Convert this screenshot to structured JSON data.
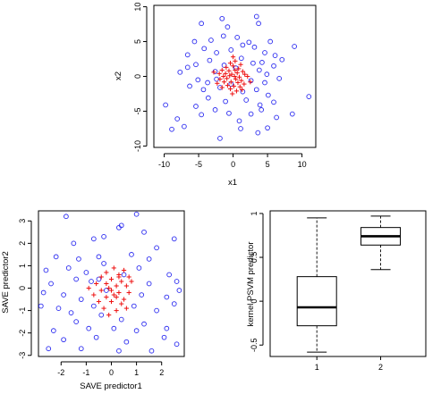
{
  "chart_data": [
    {
      "type": "scatter",
      "xlabel": "x1",
      "ylabel": "x2",
      "xlim": [
        -11.5,
        12
      ],
      "ylim": [
        -10.2,
        10.2
      ],
      "xticks": [
        -10,
        -5,
        0,
        5,
        10
      ],
      "yticks": [
        -10,
        -5,
        0,
        5,
        10
      ],
      "series": [
        {
          "marker": "circle",
          "color": "#2b2bf0",
          "points": [
            [
              -4.6,
              7.6
            ],
            [
              -1.6,
              8.3
            ],
            [
              -0.8,
              7.1
            ],
            [
              3.4,
              8.6
            ],
            [
              3.7,
              7.6
            ],
            [
              -5.6,
              5.0
            ],
            [
              -3.2,
              5.2
            ],
            [
              -1.4,
              5.8
            ],
            [
              0.6,
              5.6
            ],
            [
              2.3,
              4.9
            ],
            [
              3.1,
              4.2
            ],
            [
              5.4,
              5.0
            ],
            [
              8.9,
              4.3
            ],
            [
              -6.6,
              3.1
            ],
            [
              -4.2,
              4.0
            ],
            [
              -2.4,
              3.4
            ],
            [
              -0.3,
              3.8
            ],
            [
              1.4,
              4.5
            ],
            [
              4.6,
              3.4
            ],
            [
              6.1,
              3.0
            ],
            [
              7.1,
              2.4
            ],
            [
              -5.4,
              1.7
            ],
            [
              -3.4,
              2.3
            ],
            [
              -1.3,
              1.6
            ],
            [
              1.2,
              2.6
            ],
            [
              2.9,
              1.9
            ],
            [
              4.2,
              2.0
            ],
            [
              5.9,
              1.5
            ],
            [
              -7.7,
              0.6
            ],
            [
              -6.6,
              1.3
            ],
            [
              -2.6,
              0.7
            ],
            [
              3.8,
              0.9
            ],
            [
              4.9,
              0.3
            ],
            [
              -5.1,
              -0.5
            ],
            [
              -3.7,
              -0.9
            ],
            [
              -2.4,
              -0.4
            ],
            [
              2.6,
              -0.6
            ],
            [
              4.6,
              -0.9
            ],
            [
              6.7,
              -0.3
            ],
            [
              -6.3,
              -1.4
            ],
            [
              -4.3,
              -1.9
            ],
            [
              -1.9,
              -1.6
            ],
            [
              1.4,
              -2.2
            ],
            [
              3.4,
              -1.9
            ],
            [
              5.1,
              -2.7
            ],
            [
              -3.6,
              -3.1
            ],
            [
              -1.1,
              -3.6
            ],
            [
              1.9,
              -3.4
            ],
            [
              3.9,
              -4.1
            ],
            [
              5.9,
              -3.7
            ],
            [
              -5.4,
              -4.3
            ],
            [
              -4.6,
              -5.5
            ],
            [
              -2.6,
              -4.8
            ],
            [
              -0.6,
              -5.3
            ],
            [
              0.9,
              -6.4
            ],
            [
              2.6,
              -5.4
            ],
            [
              4.1,
              -4.8
            ],
            [
              6.3,
              -5.9
            ],
            [
              -9.8,
              -4.1
            ],
            [
              -8.1,
              -6.1
            ],
            [
              -8.9,
              -7.6
            ],
            [
              -7.1,
              -7.2
            ],
            [
              -1.9,
              -8.9
            ],
            [
              1.1,
              -7.5
            ],
            [
              3.6,
              -8.1
            ],
            [
              5.0,
              -7.4
            ],
            [
              8.6,
              -5.4
            ],
            [
              11.0,
              -2.9
            ],
            [
              -0.3,
              -1.1
            ],
            [
              0.4,
              1.2
            ]
          ]
        },
        {
          "marker": "plus",
          "color": "#ee1111",
          "points": [
            [
              0.3,
              2.2
            ],
            [
              -0.4,
              1.9
            ],
            [
              1.1,
              1.7
            ],
            [
              -1.0,
              1.3
            ],
            [
              0.0,
              1.5
            ],
            [
              0.8,
              1.1
            ],
            [
              -1.6,
              0.9
            ],
            [
              -0.6,
              0.8
            ],
            [
              0.3,
              0.9
            ],
            [
              1.4,
              0.7
            ],
            [
              -2.0,
              0.4
            ],
            [
              -1.1,
              0.4
            ],
            [
              -0.2,
              0.3
            ],
            [
              0.6,
              0.5
            ],
            [
              1.7,
              0.3
            ],
            [
              -1.4,
              0.0
            ],
            [
              -0.5,
              0.1
            ],
            [
              0.2,
              0.0
            ],
            [
              0.9,
              -0.1
            ],
            [
              2.1,
              0.0
            ],
            [
              -1.9,
              -0.4
            ],
            [
              -0.9,
              -0.3
            ],
            [
              0.4,
              -0.4
            ],
            [
              1.2,
              -0.6
            ],
            [
              -1.3,
              -0.8
            ],
            [
              -0.3,
              -0.8
            ],
            [
              0.7,
              -0.9
            ],
            [
              1.6,
              -1.1
            ],
            [
              -0.8,
              -1.3
            ],
            [
              0.1,
              -1.4
            ],
            [
              1.0,
              -1.5
            ],
            [
              -1.6,
              -1.6
            ],
            [
              -0.4,
              -1.8
            ],
            [
              0.5,
              -2.1
            ],
            [
              1.3,
              -1.9
            ],
            [
              -0.1,
              -2.5
            ],
            [
              -2.3,
              -1.0
            ],
            [
              2.5,
              -0.8
            ],
            [
              0.0,
              2.8
            ],
            [
              -2.8,
              0.6
            ]
          ]
        }
      ]
    },
    {
      "type": "scatter",
      "xlabel": "SAVE predictor1",
      "ylabel": "SAVE predictor2",
      "xlim": [
        -2.9,
        2.9
      ],
      "ylim": [
        -3.05,
        3.45
      ],
      "xticks": [
        -2,
        -1,
        0,
        1,
        2
      ],
      "yticks": [
        -3,
        -2,
        -1,
        0,
        1,
        2,
        3
      ],
      "series": [
        {
          "marker": "circle",
          "color": "#2b2bf0",
          "points": [
            [
              -1.8,
              3.2
            ],
            [
              1.0,
              3.3
            ],
            [
              -0.3,
              2.3
            ],
            [
              0.3,
              2.7
            ],
            [
              0.4,
              2.8
            ],
            [
              1.3,
              2.5
            ],
            [
              2.5,
              2.2
            ],
            [
              -1.5,
              2.0
            ],
            [
              -0.7,
              2.2
            ],
            [
              1.8,
              1.8
            ],
            [
              -2.2,
              1.4
            ],
            [
              -1.3,
              1.3
            ],
            [
              -0.5,
              1.4
            ],
            [
              0.8,
              1.5
            ],
            [
              1.5,
              1.3
            ],
            [
              -2.6,
              0.8
            ],
            [
              -1.7,
              0.9
            ],
            [
              -1.0,
              0.7
            ],
            [
              -0.3,
              1.1
            ],
            [
              1.1,
              0.9
            ],
            [
              2.3,
              0.6
            ],
            [
              -2.4,
              0.2
            ],
            [
              -1.4,
              0.4
            ],
            [
              -0.8,
              0.3
            ],
            [
              1.5,
              0.2
            ],
            [
              2.6,
              0.3
            ],
            [
              -2.7,
              -0.2
            ],
            [
              -1.9,
              -0.3
            ],
            [
              -1.2,
              -0.5
            ],
            [
              1.2,
              -0.3
            ],
            [
              2.2,
              -0.4
            ],
            [
              -2.1,
              -0.9
            ],
            [
              -1.6,
              -1.1
            ],
            [
              -0.7,
              -0.8
            ],
            [
              0.9,
              -0.8
            ],
            [
              1.8,
              -1.0
            ],
            [
              2.5,
              -0.7
            ],
            [
              -1.4,
              -1.5
            ],
            [
              -0.4,
              -1.2
            ],
            [
              0.4,
              -1.4
            ],
            [
              1.3,
              -1.6
            ],
            [
              -2.3,
              -1.9
            ],
            [
              -0.9,
              -1.8
            ],
            [
              0.1,
              -1.8
            ],
            [
              1.0,
              -1.9
            ],
            [
              2.2,
              -1.8
            ],
            [
              -1.9,
              -2.3
            ],
            [
              -0.6,
              -2.2
            ],
            [
              0.6,
              -2.4
            ],
            [
              2.6,
              -2.5
            ],
            [
              -2.5,
              -2.7
            ],
            [
              -1.2,
              -2.7
            ],
            [
              0.3,
              -2.8
            ],
            [
              1.6,
              -2.8
            ],
            [
              2.1,
              -2.2
            ],
            [
              -0.2,
              -0.1
            ],
            [
              0.5,
              0.6
            ],
            [
              -0.5,
              0.4
            ],
            [
              2.7,
              -0.1
            ],
            [
              -2.8,
              -0.8
            ]
          ]
        },
        {
          "marker": "plus",
          "color": "#ee1111",
          "points": [
            [
              0.1,
              0.9
            ],
            [
              0.5,
              0.8
            ],
            [
              -0.2,
              0.7
            ],
            [
              0.3,
              0.6
            ],
            [
              0.7,
              0.5
            ],
            [
              -0.4,
              0.5
            ],
            [
              0.0,
              0.4
            ],
            [
              0.4,
              0.3
            ],
            [
              0.8,
              0.3
            ],
            [
              -0.6,
              0.2
            ],
            [
              -0.2,
              0.2
            ],
            [
              0.2,
              0.1
            ],
            [
              0.6,
              0.1
            ],
            [
              -0.9,
              0.0
            ],
            [
              -0.4,
              -0.1
            ],
            [
              0.0,
              -0.1
            ],
            [
              0.3,
              -0.2
            ],
            [
              0.7,
              -0.2
            ],
            [
              -0.7,
              -0.3
            ],
            [
              -0.2,
              -0.4
            ],
            [
              0.2,
              -0.4
            ],
            [
              0.5,
              -0.5
            ],
            [
              -0.5,
              -0.6
            ],
            [
              0.0,
              -0.6
            ],
            [
              0.4,
              -0.7
            ],
            [
              -0.3,
              -0.9
            ],
            [
              0.2,
              -1.0
            ],
            [
              0.6,
              -0.9
            ],
            [
              -0.1,
              -1.2
            ],
            [
              0.3,
              0.5
            ],
            [
              -0.1,
              0.0
            ],
            [
              0.1,
              -0.3
            ]
          ]
        }
      ]
    },
    {
      "type": "box",
      "xlabel": "",
      "ylabel": "kernel PSVM predictor",
      "categories": [
        "1",
        "2"
      ],
      "ylim": [
        -0.63,
        1.03
      ],
      "yticks": [
        -0.5,
        0.0,
        0.5,
        1.0
      ],
      "boxes": [
        {
          "min": -0.58,
          "q1": -0.28,
          "median": -0.07,
          "q3": 0.28,
          "max": 0.95
        },
        {
          "min": 0.36,
          "q1": 0.64,
          "median": 0.74,
          "q3": 0.84,
          "max": 0.97
        }
      ]
    }
  ]
}
